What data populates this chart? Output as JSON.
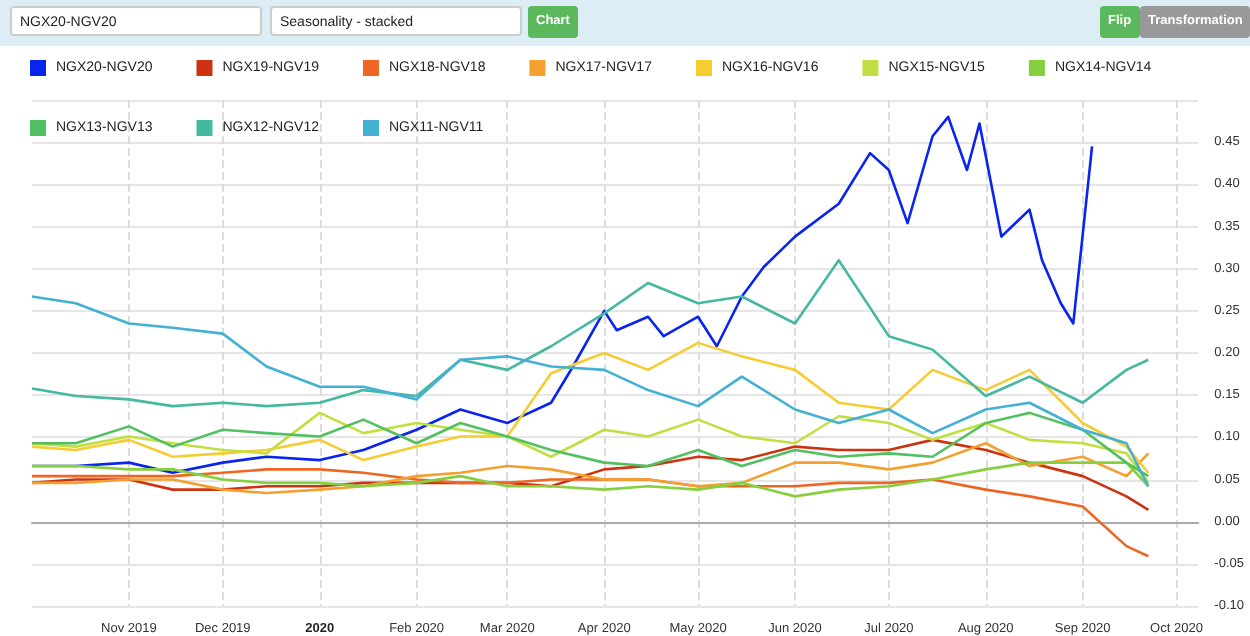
{
  "chart_data": {
    "type": "line",
    "annotations": [
      "NGX20-NGV20",
      "Seasonality - stacked",
      "Chart",
      "Flip",
      "Transformation"
    ],
    "x": [
      "2019-10-01",
      "2019-10-15",
      "2019-11-01",
      "2019-11-15",
      "2019-12-01",
      "2019-12-15",
      "2020-01-01",
      "2020-01-15",
      "2020-02-01",
      "2020-02-15",
      "2020-03-01",
      "2020-03-15",
      "2020-04-01",
      "2020-04-15",
      "2020-05-01",
      "2020-05-15",
      "2020-06-01",
      "2020-06-15",
      "2020-07-01",
      "2020-07-15",
      "2020-08-01",
      "2020-08-15",
      "2020-09-01",
      "2020-09-15",
      "2020-09-22"
    ],
    "series": [
      {
        "name": "NGX20-NGV20",
        "color": "#0a24f0",
        "x": [
          "2019-10-01",
          "2019-10-15",
          "2019-11-01",
          "2019-11-15",
          "2019-12-01",
          "2019-12-15",
          "2020-01-01",
          "2020-01-15",
          "2020-02-01",
          "2020-02-15",
          "2020-03-01",
          "2020-03-15",
          "2020-03-22",
          "2020-04-01",
          "2020-04-05",
          "2020-04-15",
          "2020-04-20",
          "2020-05-01",
          "2020-05-07",
          "2020-05-15",
          "2020-05-22",
          "2020-06-01",
          "2020-06-15",
          "2020-06-25",
          "2020-07-01",
          "2020-07-07",
          "2020-07-15",
          "2020-07-20",
          "2020-07-26",
          "2020-07-30",
          "2020-08-06",
          "2020-08-15",
          "2020-08-19",
          "2020-08-25",
          "2020-08-29",
          "2020-09-04"
        ],
        "values": [
          0.066,
          0.066,
          0.07,
          0.058,
          0.07,
          0.077,
          0.073,
          0.085,
          0.109,
          0.133,
          0.117,
          0.141,
          0.184,
          0.25,
          0.227,
          0.243,
          0.22,
          0.243,
          0.208,
          0.267,
          0.302,
          0.338,
          0.377,
          0.437,
          0.417,
          0.354,
          0.457,
          0.48,
          0.417,
          0.472,
          0.338,
          0.37,
          0.31,
          0.259,
          0.235,
          0.445
        ]
      },
      {
        "name": "NGX19-NGV19",
        "color": "#cc3311",
        "values": [
          0.046,
          0.05,
          0.05,
          0.038,
          0.038,
          0.042,
          0.042,
          0.046,
          0.046,
          0.046,
          0.046,
          0.042,
          0.062,
          0.066,
          0.077,
          0.073,
          0.089,
          0.085,
          0.085,
          0.097,
          0.085,
          0.07,
          0.054,
          0.03,
          0.014
        ]
      },
      {
        "name": "NGX18-NGV18",
        "color": "#ee6622",
        "values": [
          0.054,
          0.054,
          0.054,
          0.054,
          0.058,
          0.062,
          0.062,
          0.058,
          0.05,
          0.046,
          0.046,
          0.05,
          0.05,
          0.05,
          0.042,
          0.042,
          0.042,
          0.046,
          0.046,
          0.05,
          0.038,
          0.03,
          0.018,
          -0.029,
          -0.041
        ]
      },
      {
        "name": "NGX17-NGV17",
        "color": "#f2a030",
        "values": [
          0.046,
          0.046,
          0.05,
          0.05,
          0.038,
          0.034,
          0.038,
          0.042,
          0.054,
          0.058,
          0.066,
          0.062,
          0.05,
          0.05,
          0.042,
          0.046,
          0.07,
          0.07,
          0.062,
          0.07,
          0.093,
          0.066,
          0.077,
          0.054,
          0.081
        ]
      },
      {
        "name": "NGX16-NGV16",
        "color": "#f6cc33",
        "values": [
          0.089,
          0.085,
          0.097,
          0.077,
          0.081,
          0.085,
          0.097,
          0.073,
          0.089,
          0.101,
          0.101,
          0.176,
          0.2,
          0.18,
          0.212,
          0.196,
          0.18,
          0.141,
          0.133,
          0.18,
          0.156,
          0.18,
          0.117,
          0.089,
          0.058
        ]
      },
      {
        "name": "NGX15-NGV15",
        "color": "#bfe040",
        "values": [
          0.093,
          0.089,
          0.101,
          0.093,
          0.085,
          0.081,
          0.129,
          0.105,
          0.117,
          0.109,
          0.101,
          0.077,
          0.109,
          0.101,
          0.121,
          0.101,
          0.093,
          0.125,
          0.117,
          0.097,
          0.117,
          0.097,
          0.093,
          0.081,
          0.046
        ]
      },
      {
        "name": "NGX14-NGV14",
        "color": "#86d040",
        "values": [
          0.066,
          0.066,
          0.062,
          0.062,
          0.05,
          0.046,
          0.046,
          0.042,
          0.046,
          0.054,
          0.042,
          0.042,
          0.038,
          0.042,
          0.038,
          0.046,
          0.03,
          0.038,
          0.042,
          0.05,
          0.062,
          0.07,
          0.07,
          0.07,
          0.042
        ]
      },
      {
        "name": "NGX13-NGV13",
        "color": "#52c060",
        "values": [
          0.093,
          0.093,
          0.113,
          0.089,
          0.109,
          0.105,
          0.101,
          0.121,
          0.093,
          0.117,
          0.101,
          0.085,
          0.07,
          0.066,
          0.085,
          0.066,
          0.085,
          0.077,
          0.081,
          0.077,
          0.117,
          0.129,
          0.109,
          0.07,
          0.054
        ]
      },
      {
        "name": "NGX12-NGV12",
        "color": "#44b8a0",
        "values": [
          0.158,
          0.149,
          0.145,
          0.137,
          0.141,
          0.137,
          0.141,
          0.156,
          0.149,
          0.192,
          0.18,
          0.208,
          0.247,
          0.283,
          0.259,
          0.267,
          0.235,
          0.31,
          0.22,
          0.204,
          0.149,
          0.172,
          0.141,
          0.18,
          0.192
        ]
      },
      {
        "name": "NGX11-NGV11",
        "color": "#44b0d4",
        "values": [
          0.267,
          0.259,
          0.235,
          0.23,
          0.223,
          0.184,
          0.16,
          0.16,
          0.145,
          0.192,
          0.196,
          0.184,
          0.18,
          0.156,
          0.137,
          0.172,
          0.133,
          0.117,
          0.133,
          0.105,
          0.133,
          0.141,
          0.109,
          0.093,
          0.042
        ]
      }
    ],
    "xlim": [
      "2019-10-01",
      "2020-10-08"
    ],
    "xticks": [
      {
        "value": "2019-11-01",
        "label": "Nov 2019"
      },
      {
        "value": "2019-12-01",
        "label": "Dec 2019"
      },
      {
        "value": "2020-01-01",
        "label": "2020"
      },
      {
        "value": "2020-02-01",
        "label": "Feb 2020"
      },
      {
        "value": "2020-03-01",
        "label": "Mar 2020"
      },
      {
        "value": "2020-04-01",
        "label": "Apr 2020"
      },
      {
        "value": "2020-05-01",
        "label": "May 2020"
      },
      {
        "value": "2020-06-01",
        "label": "Jun 2020"
      },
      {
        "value": "2020-07-01",
        "label": "Jul 2020"
      },
      {
        "value": "2020-08-01",
        "label": "Aug 2020"
      },
      {
        "value": "2020-09-01",
        "label": "Sep 2020"
      },
      {
        "value": "2020-10-01",
        "label": "Oct 2020"
      }
    ],
    "ylim": [
      -0.1,
      0.5
    ],
    "yticks": [
      {
        "value": -0.1,
        "label": "-0.10"
      },
      {
        "value": -0.05,
        "label": "-0.05"
      },
      {
        "value": 0,
        "label": "0.00"
      },
      {
        "value": 0.05,
        "label": "0.05"
      },
      {
        "value": 0.1,
        "label": "0.10"
      },
      {
        "value": 0.15,
        "label": "0.15"
      },
      {
        "value": 0.2,
        "label": "0.20"
      },
      {
        "value": 0.25,
        "label": "0.25"
      },
      {
        "value": 0.3,
        "label": "0.30"
      },
      {
        "value": 0.35,
        "label": "0.35"
      },
      {
        "value": 0.4,
        "label": "0.40"
      },
      {
        "value": 0.45,
        "label": "0.45"
      },
      {
        "value": 0.5,
        "label": null
      }
    ],
    "grid": true,
    "legend": "top",
    "marker": "none",
    "line_style": "solid"
  }
}
